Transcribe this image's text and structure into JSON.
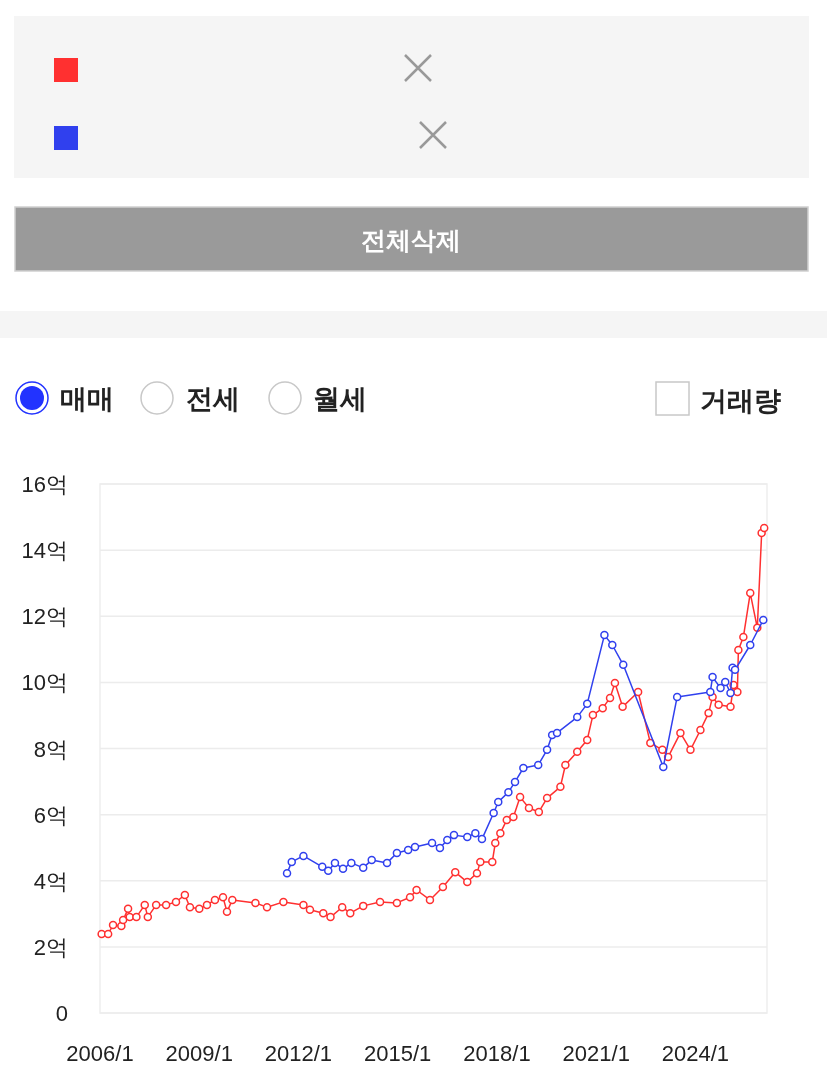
{
  "chart_data": [
    {
      "type": "other",
      "annotations": [
        "전체삭제",
        "매매",
        "전세",
        "월세",
        "거래량"
      ]
    },
    {
      "type": "line",
      "marker": "circle",
      "line_style": "solid",
      "grid": "y",
      "xlim": [
        "2006-01-01",
        "2026-03-01"
      ],
      "xticks": [
        {
          "value": "2006-01",
          "label": "2006/1"
        },
        {
          "value": "2009-01",
          "label": "2009/1"
        },
        {
          "value": "2012-01",
          "label": "2012/1"
        },
        {
          "value": "2015-01",
          "label": "2015/1"
        },
        {
          "value": "2018-01",
          "label": "2018/1"
        },
        {
          "value": "2021-01",
          "label": "2021/1"
        },
        {
          "value": "2024-01",
          "label": "2024/1"
        }
      ],
      "ylim": [
        0,
        16
      ],
      "yticks": [
        0,
        {
          "value": 2,
          "label": "2억"
        },
        {
          "value": 4,
          "label": "4억"
        },
        {
          "value": 6,
          "label": "6억"
        },
        {
          "value": 8,
          "label": "8억"
        },
        {
          "value": 10,
          "label": "10억"
        },
        {
          "value": 12,
          "label": "12억"
        },
        {
          "value": 14,
          "label": "14억"
        },
        {
          "value": 16,
          "label": "16억"
        }
      ],
      "series": [
        {
          "color": "#ff3030",
          "x": [
            "2006-01-19",
            "2006-04-01",
            "2006-05-25",
            "2006-08-25",
            "2006-09-13",
            "2006-11-07",
            "2006-11-25",
            "2007-02-07",
            "2007-05-10",
            "2007-06-13",
            "2007-09-13",
            "2008-01-01",
            "2008-04-19",
            "2008-07-26",
            "2008-09-20",
            "2009-01-01",
            "2009-03-27",
            "2009-06-23",
            "2009-09-20",
            "2009-11-03",
            "2010-01-01",
            "2010-09-13",
            "2011-01-19",
            "2011-07-19",
            "2012-02-25",
            "2012-05-07",
            "2012-10-01",
            "2012-12-20",
            "2013-04-28",
            "2013-07-26",
            "2013-12-16",
            "2014-06-20",
            "2014-12-23",
            "2015-05-17",
            "2015-07-28",
            "2015-12-23",
            "2016-05-14",
            "2016-09-27",
            "2017-02-07",
            "2017-05-25",
            "2017-07-01",
            "2017-11-10",
            "2017-12-13",
            "2018-02-07",
            "2018-04-19",
            "2018-07-01",
            "2018-09-13",
            "2018-12-20",
            "2019-04-08",
            "2019-07-08",
            "2019-12-02",
            "2020-01-26",
            "2020-06-05",
            "2020-09-23",
            "2020-11-25",
            "2021-03-13",
            "2021-06-02",
            "2021-07-26",
            "2021-10-19",
            "2022-04-08",
            "2022-08-21",
            "2023-01-01",
            "2023-03-05",
            "2023-07-19",
            "2023-11-07",
            "2024-02-25",
            "2024-05-25",
            "2024-07-08",
            "2024-09-13",
            "2025-01-22",
            "2025-02-25",
            "2025-04-08",
            "2025-04-19",
            "2025-06-13",
            "2025-08-28",
            "2025-11-14",
            "2026-01-01",
            "2026-01-29"
          ],
          "values": [
            2.39,
            2.39,
            2.66,
            2.63,
            2.81,
            3.15,
            2.9,
            2.9,
            3.27,
            2.9,
            3.27,
            3.27,
            3.36,
            3.57,
            3.2,
            3.15,
            3.27,
            3.42,
            3.5,
            3.06,
            3.42,
            3.33,
            3.2,
            3.36,
            3.27,
            3.12,
            3.02,
            2.9,
            3.2,
            3.02,
            3.24,
            3.36,
            3.33,
            3.5,
            3.72,
            3.42,
            3.81,
            4.26,
            3.96,
            4.23,
            4.57,
            4.57,
            5.14,
            5.44,
            5.84,
            5.93,
            6.53,
            6.2,
            6.08,
            6.5,
            6.84,
            7.5,
            7.9,
            8.26,
            9.01,
            9.22,
            9.53,
            9.98,
            9.26,
            9.71,
            8.17,
            7.96,
            7.74,
            8.47,
            7.96,
            8.56,
            9.07,
            9.56,
            9.32,
            9.26,
            9.92,
            9.71,
            10.98,
            11.37,
            12.7,
            11.65,
            14.52,
            14.67
          ]
        },
        {
          "color": "#3040ee",
          "x": [
            "2011-08-28",
            "2011-10-19",
            "2012-02-25",
            "2012-09-20",
            "2012-11-25",
            "2013-02-07",
            "2013-05-07",
            "2013-08-07",
            "2013-12-16",
            "2014-03-20",
            "2014-09-05",
            "2014-12-23",
            "2015-04-26",
            "2015-07-11",
            "2016-01-15",
            "2016-04-11",
            "2016-07-01",
            "2016-09-13",
            "2017-02-07",
            "2017-05-07",
            "2017-07-19",
            "2017-11-25",
            "2018-01-15",
            "2018-05-07",
            "2018-07-19",
            "2018-10-19",
            "2019-04-01",
            "2019-07-08",
            "2019-09-02",
            "2019-10-26",
            "2020-06-05",
            "2020-09-23",
            "2021-04-01",
            "2021-06-27",
            "2021-10-26",
            "2023-01-11",
            "2023-06-13",
            "2024-06-13",
            "2024-07-08",
            "2024-10-04",
            "2024-11-25",
            "2025-01-22",
            "2025-02-14",
            "2025-03-13",
            "2025-08-28",
            "2026-01-19"
          ],
          "values": [
            4.23,
            4.57,
            4.75,
            4.42,
            4.3,
            4.54,
            4.36,
            4.54,
            4.39,
            4.63,
            4.54,
            4.84,
            4.93,
            5.02,
            5.14,
            4.99,
            5.23,
            5.38,
            5.32,
            5.44,
            5.26,
            6.05,
            6.38,
            6.68,
            6.99,
            7.41,
            7.5,
            7.96,
            8.41,
            8.47,
            8.95,
            9.35,
            11.43,
            11.13,
            10.53,
            7.44,
            9.56,
            9.71,
            10.16,
            9.83,
            10.01,
            9.68,
            10.44,
            10.38,
            11.13,
            11.89
          ]
        }
      ]
    }
  ]
}
